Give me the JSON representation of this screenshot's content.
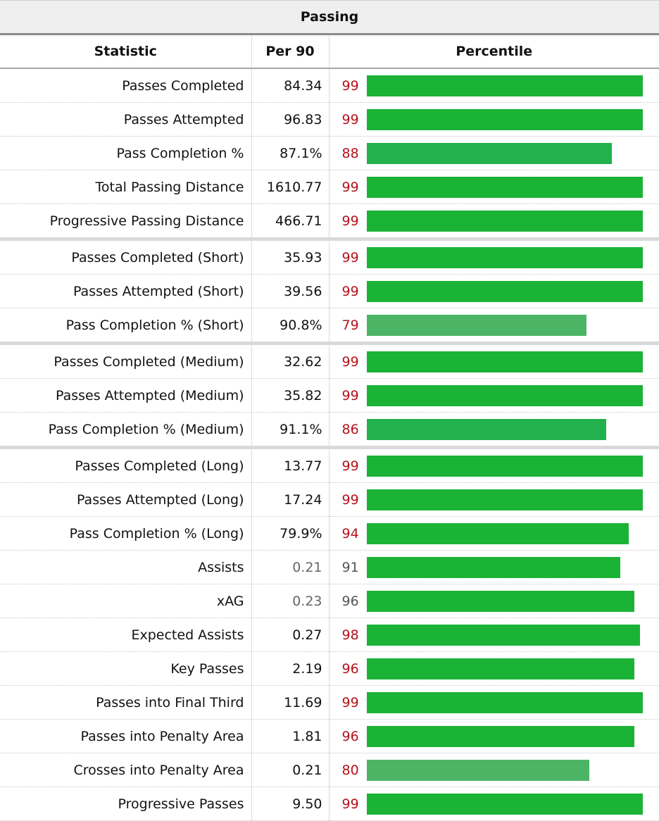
{
  "table": {
    "caption": "Passing",
    "headers": [
      "Statistic",
      "Per 90",
      "Percentile"
    ],
    "colors": {
      "high": "#1bb336",
      "mid": "#22b14c",
      "low": "#4cb565",
      "pct_red": "#b5121b",
      "pct_gray": "#555555"
    },
    "rows": [
      {
        "stat": "Passes Completed",
        "per90": "84.34",
        "pct": "99",
        "group_end": false,
        "muted": false
      },
      {
        "stat": "Passes Attempted",
        "per90": "96.83",
        "pct": "99",
        "group_end": false,
        "muted": false
      },
      {
        "stat": "Pass Completion %",
        "per90": "87.1%",
        "pct": "88",
        "group_end": false,
        "muted": false
      },
      {
        "stat": "Total Passing Distance",
        "per90": "1610.77",
        "pct": "99",
        "group_end": false,
        "muted": false
      },
      {
        "stat": "Progressive Passing Distance",
        "per90": "466.71",
        "pct": "99",
        "group_end": true,
        "muted": false
      },
      {
        "stat": "Passes Completed (Short)",
        "per90": "35.93",
        "pct": "99",
        "group_end": false,
        "muted": false
      },
      {
        "stat": "Passes Attempted (Short)",
        "per90": "39.56",
        "pct": "99",
        "group_end": false,
        "muted": false
      },
      {
        "stat": "Pass Completion % (Short)",
        "per90": "90.8%",
        "pct": "79",
        "group_end": true,
        "muted": false
      },
      {
        "stat": "Passes Completed (Medium)",
        "per90": "32.62",
        "pct": "99",
        "group_end": false,
        "muted": false
      },
      {
        "stat": "Passes Attempted (Medium)",
        "per90": "35.82",
        "pct": "99",
        "group_end": false,
        "muted": false
      },
      {
        "stat": "Pass Completion % (Medium)",
        "per90": "91.1%",
        "pct": "86",
        "group_end": true,
        "muted": false
      },
      {
        "stat": "Passes Completed (Long)",
        "per90": "13.77",
        "pct": "99",
        "group_end": false,
        "muted": false
      },
      {
        "stat": "Passes Attempted (Long)",
        "per90": "17.24",
        "pct": "99",
        "group_end": false,
        "muted": false
      },
      {
        "stat": "Pass Completion % (Long)",
        "per90": "79.9%",
        "pct": "94",
        "group_end": false,
        "muted": false
      },
      {
        "stat": "Assists",
        "per90": "0.21",
        "pct": "91",
        "group_end": false,
        "muted": true
      },
      {
        "stat": "xAG",
        "per90": "0.23",
        "pct": "96",
        "group_end": false,
        "muted": true
      },
      {
        "stat": "Expected Assists",
        "per90": "0.27",
        "pct": "98",
        "group_end": false,
        "muted": false
      },
      {
        "stat": "Key Passes",
        "per90": "2.19",
        "pct": "96",
        "group_end": false,
        "muted": false
      },
      {
        "stat": "Passes into Final Third",
        "per90": "11.69",
        "pct": "99",
        "group_end": false,
        "muted": false
      },
      {
        "stat": "Passes into Penalty Area",
        "per90": "1.81",
        "pct": "96",
        "group_end": false,
        "muted": false
      },
      {
        "stat": "Crosses into Penalty Area",
        "per90": "0.21",
        "pct": "80",
        "group_end": false,
        "muted": false
      },
      {
        "stat": "Progressive Passes",
        "per90": "9.50",
        "pct": "99",
        "group_end": false,
        "muted": false
      }
    ]
  }
}
